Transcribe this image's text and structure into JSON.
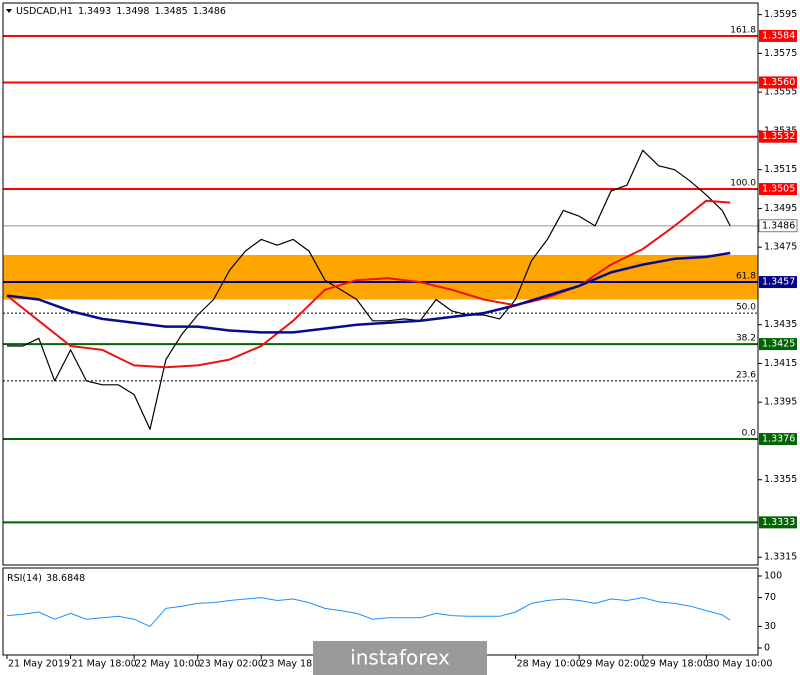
{
  "chart_data": {
    "type": "line",
    "symbol": "USDCAD,H1",
    "ohlc": [
      1.3493,
      1.3498,
      1.3485,
      1.3486
    ],
    "xlim": [
      -1,
      189
    ],
    "ylim": [
      1.3311,
      1.3601
    ],
    "yticks": [
      1.3595,
      1.3575,
      1.3555,
      1.3535,
      1.3515,
      1.3495,
      1.3475,
      1.3435,
      1.3415,
      1.3395,
      1.3355,
      1.3315
    ],
    "xticks": [
      {
        "value": 0,
        "label": "21 May 2019"
      },
      {
        "value": 16,
        "label": "21 May 18:00"
      },
      {
        "value": 32,
        "label": "22 May 10:00"
      },
      {
        "value": 48,
        "label": "23 May 02:00"
      },
      {
        "value": 64,
        "label": "23 May 18:00"
      },
      {
        "value": 128,
        "label": "28 May 10:00"
      },
      {
        "value": 144,
        "label": "29 May 02:00"
      },
      {
        "value": 160,
        "label": "29 May 18:00"
      },
      {
        "value": 176,
        "label": "30 May 10:00"
      }
    ],
    "zone": {
      "range": [
        1.3448,
        1.3471
      ],
      "color": "#ffa500"
    },
    "levels": [
      {
        "price": 1.3584,
        "fib": "161.8",
        "color": "#ff0000",
        "style": "solid",
        "boxed": true
      },
      {
        "price": 1.356,
        "price_label": "1.3560",
        "color": "#ff0000",
        "style": "solid",
        "boxed": true
      },
      {
        "price": 1.3532,
        "color": "#ff0000",
        "style": "solid",
        "boxed": true
      },
      {
        "price": 1.3505,
        "fib": "100.0",
        "color": "#ff0000",
        "style": "solid",
        "boxed": true
      },
      {
        "price": 1.3486,
        "color": "#8a94a6",
        "style": "thin",
        "boxed": true
      },
      {
        "price": 1.3457,
        "fib": "61.8",
        "color": "#00008b",
        "style": "solid",
        "boxed": true
      },
      {
        "price": 1.3441,
        "fib": "50.0",
        "color": "#000000",
        "style": "dotted",
        "boxed": false
      },
      {
        "price": 1.3425,
        "fib": "38.2",
        "color": "#006400",
        "style": "solid",
        "boxed": true
      },
      {
        "price": 1.3406,
        "fib": "23.6",
        "color": "#000000",
        "style": "dotted",
        "boxed": false
      },
      {
        "price": 1.3376,
        "fib": "0.0",
        "color": "#006400",
        "style": "solid",
        "boxed": true
      },
      {
        "price": 1.3333,
        "color": "#006400",
        "style": "solid",
        "boxed": true
      }
    ],
    "series": [
      {
        "color": "#000000",
        "width": 1.2,
        "x": [
          0,
          4,
          8,
          12,
          16,
          20,
          24,
          28,
          32,
          36,
          40,
          44,
          48,
          52,
          56,
          60,
          64,
          68,
          72,
          76,
          80,
          84,
          88,
          92,
          96,
          100,
          104,
          108,
          112,
          116,
          120,
          124,
          128,
          132,
          136,
          140,
          144,
          148,
          152,
          156,
          160,
          164,
          168,
          172,
          176,
          180,
          182
        ],
        "values": [
          1.3424,
          1.3424,
          1.3428,
          1.3406,
          1.3422,
          1.3406,
          1.3404,
          1.3404,
          1.3399,
          1.3381,
          1.3417,
          1.343,
          1.344,
          1.3448,
          1.3463,
          1.3473,
          1.3479,
          1.3476,
          1.3479,
          1.3473,
          1.3458,
          1.3453,
          1.3448,
          1.3437,
          1.3437,
          1.3438,
          1.3437,
          1.3448,
          1.3442,
          1.344,
          1.344,
          1.3438,
          1.3448,
          1.3468,
          1.3479,
          1.3494,
          1.3491,
          1.3486,
          1.3504,
          1.3507,
          1.3525,
          1.3517,
          1.3515,
          1.3509,
          1.3502,
          1.3494,
          1.3486
        ]
      },
      {
        "color": "#ee1111",
        "width": 2,
        "x": [
          0,
          8,
          16,
          24,
          32,
          40,
          48,
          56,
          64,
          72,
          80,
          88,
          96,
          104,
          112,
          120,
          128,
          136,
          144,
          152,
          160,
          168,
          176,
          182
        ],
        "values": [
          1.345,
          1.3437,
          1.3424,
          1.3422,
          1.3414,
          1.3413,
          1.3414,
          1.3417,
          1.3424,
          1.3437,
          1.3453,
          1.3458,
          1.3459,
          1.3457,
          1.3453,
          1.3448,
          1.3445,
          1.3449,
          1.3455,
          1.3466,
          1.3474,
          1.3486,
          1.3499,
          1.3498
        ]
      },
      {
        "color": "#0a0a8c",
        "width": 2.5,
        "x": [
          0,
          8,
          16,
          24,
          32,
          40,
          48,
          56,
          64,
          72,
          80,
          88,
          96,
          104,
          112,
          120,
          128,
          136,
          144,
          152,
          160,
          168,
          176,
          182
        ],
        "values": [
          1.345,
          1.3448,
          1.3442,
          1.3438,
          1.3436,
          1.3434,
          1.3434,
          1.3432,
          1.3431,
          1.3431,
          1.3433,
          1.3435,
          1.3436,
          1.3437,
          1.3439,
          1.3441,
          1.3445,
          1.345,
          1.3455,
          1.3462,
          1.3466,
          1.3469,
          1.347,
          1.3472
        ]
      }
    ],
    "rsi": {
      "label": "RSI(14)",
      "value": 38.6848,
      "ylim": [
        0,
        100
      ],
      "yticks": [
        100,
        70,
        30,
        0
      ],
      "color": "#1e90ff",
      "x": [
        0,
        4,
        8,
        12,
        16,
        20,
        24,
        28,
        32,
        36,
        40,
        44,
        48,
        52,
        56,
        60,
        64,
        68,
        72,
        76,
        80,
        84,
        88,
        92,
        96,
        100,
        104,
        108,
        112,
        116,
        120,
        124,
        128,
        132,
        136,
        140,
        144,
        148,
        152,
        156,
        160,
        164,
        168,
        172,
        176,
        180,
        182
      ],
      "values": [
        45,
        47,
        50,
        40,
        48,
        40,
        42,
        44,
        40,
        30,
        55,
        58,
        62,
        63,
        66,
        68,
        70,
        66,
        68,
        63,
        55,
        52,
        48,
        40,
        42,
        42,
        42,
        48,
        45,
        44,
        44,
        44,
        50,
        62,
        66,
        68,
        66,
        62,
        68,
        66,
        70,
        64,
        62,
        58,
        52,
        46,
        38.6848
      ]
    },
    "watermark": "instaforex"
  }
}
